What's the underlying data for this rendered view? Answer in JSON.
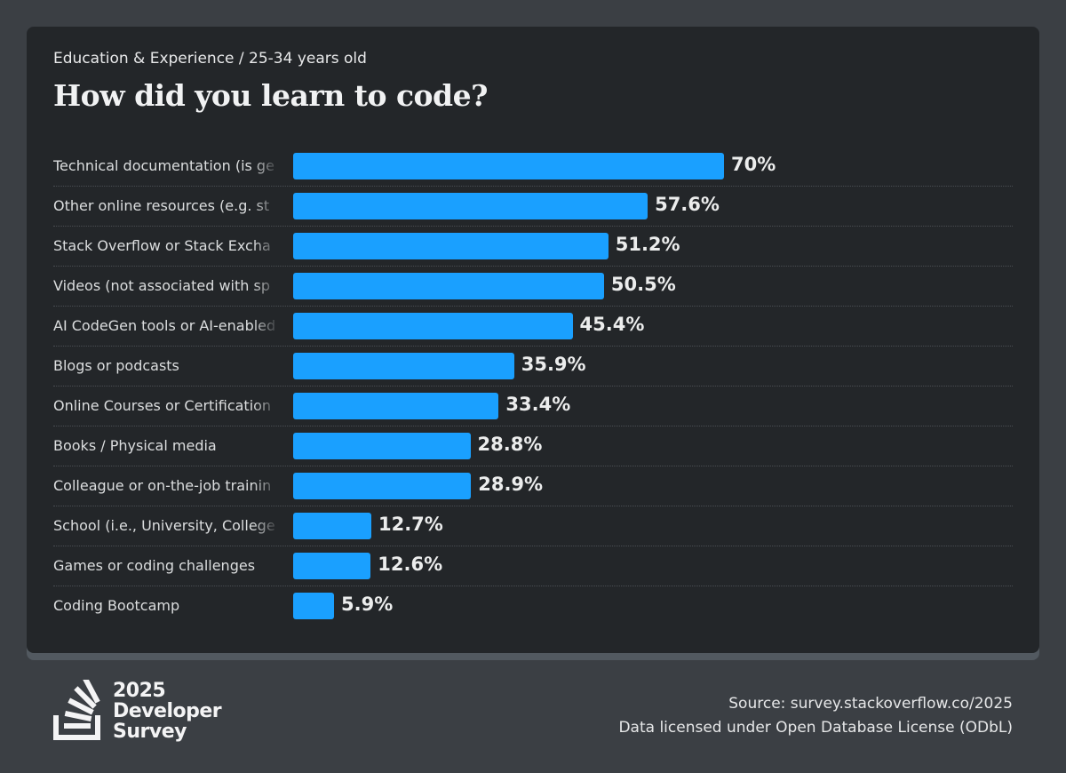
{
  "header": {
    "subtitle": "Education & Experience / 25-34 years old",
    "title": "How did you learn to code?"
  },
  "chart_data": {
    "type": "bar",
    "orientation": "horizontal",
    "title": "How did you learn to code?",
    "subtitle": "Education & Experience / 25-34 years old",
    "categories": [
      "Technical documentation (is ge",
      "Other online resources (e.g. st",
      "Stack Overflow or Stack Excha",
      "Videos (not associated with sp",
      "AI CodeGen tools or AI-enabled",
      "Blogs or podcasts",
      "Online Courses or Certification",
      "Books / Physical media",
      "Colleague or on-the-job trainin",
      "School (i.e., University, College",
      "Games or coding challenges",
      "Coding Bootcamp"
    ],
    "truncated": [
      true,
      true,
      true,
      true,
      true,
      false,
      true,
      false,
      true,
      true,
      false,
      false
    ],
    "values": [
      70,
      57.6,
      51.2,
      50.5,
      45.4,
      35.9,
      33.4,
      28.8,
      28.9,
      12.7,
      12.6,
      5.9
    ],
    "value_labels": [
      "70%",
      "57.6%",
      "51.2%",
      "50.5%",
      "45.4%",
      "35.9%",
      "33.4%",
      "28.8%",
      "28.9%",
      "12.7%",
      "12.6%",
      "5.9%"
    ],
    "unit": "%",
    "xlim": [
      0,
      70
    ],
    "bar_color": "#1aa0ff",
    "grid": false,
    "legend": "none"
  },
  "footer": {
    "logo_text": [
      "2025",
      "Developer",
      "Survey"
    ],
    "source": "Source: survey.stackoverflow.co/2025",
    "license": "Data licensed under Open Database License (ODbL)"
  }
}
